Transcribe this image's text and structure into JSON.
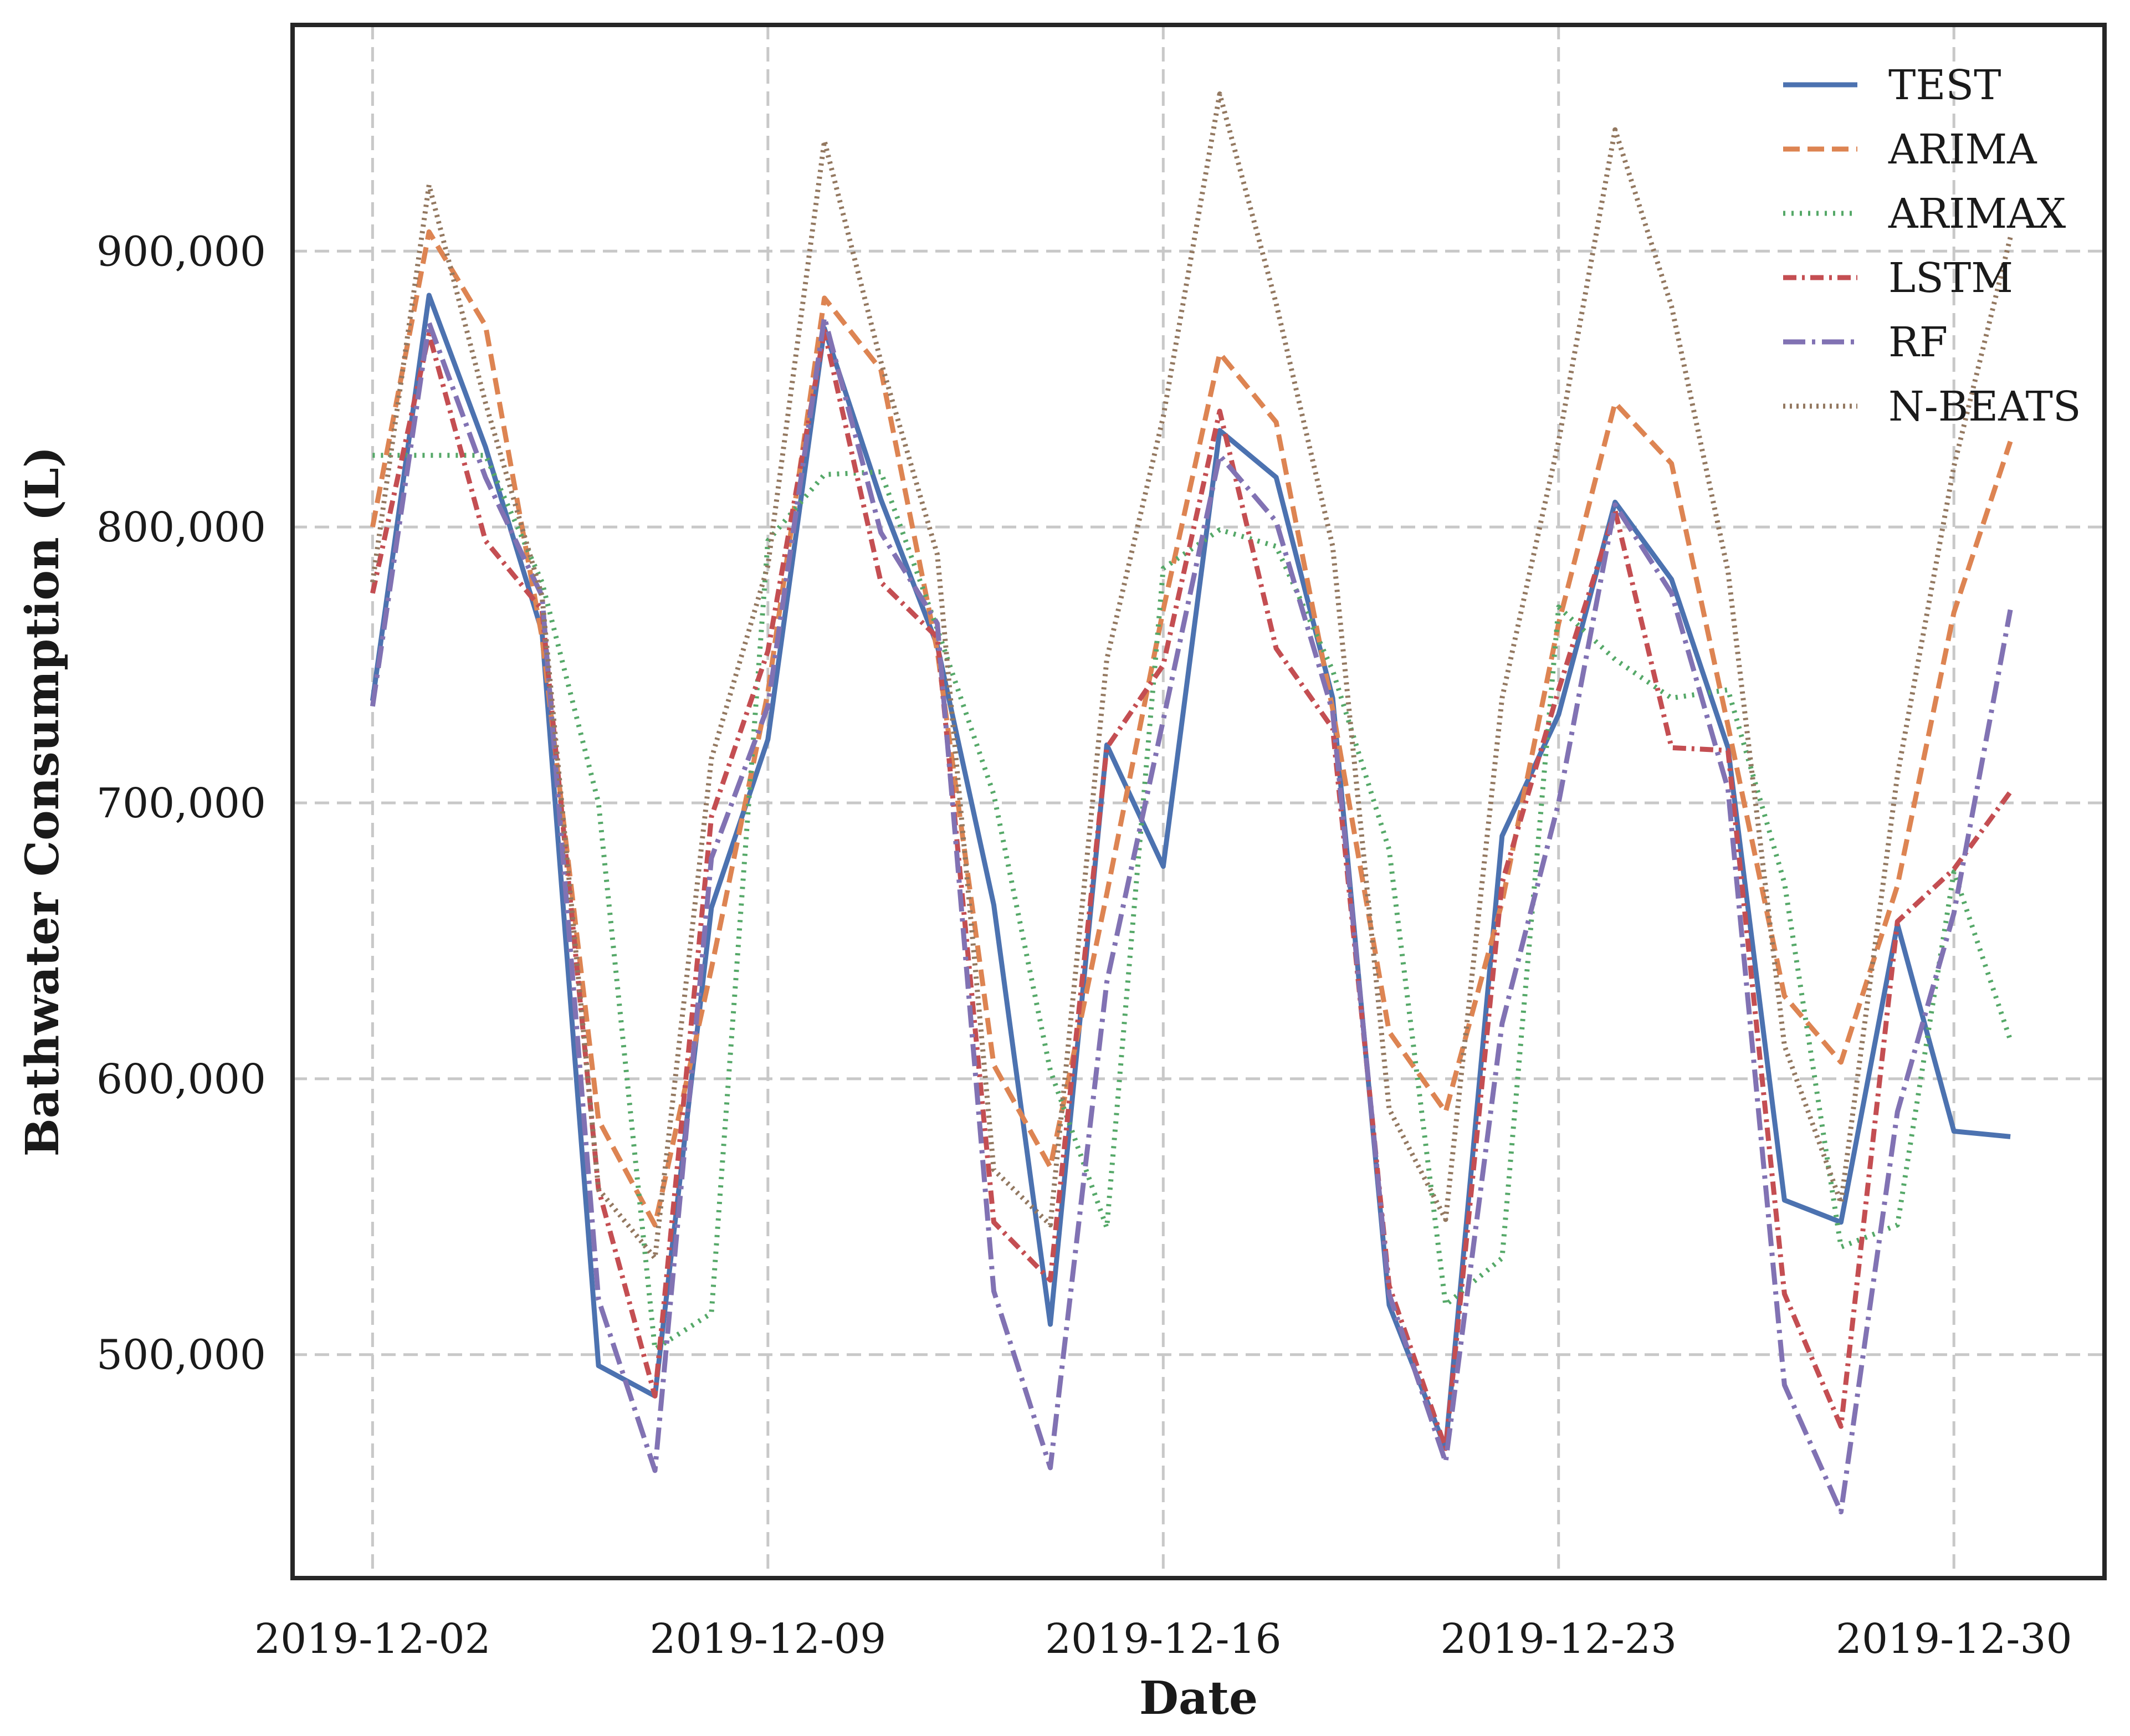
{
  "chart_data": {
    "type": "line",
    "xlabel": "Date",
    "ylabel": "Bathwater Consumption (L)",
    "x_tick_labels": [
      "2019-12-02",
      "2019-12-09",
      "2019-12-16",
      "2019-12-23",
      "2019-12-30"
    ],
    "y_tick_labels": [
      "500,000",
      "600,000",
      "700,000",
      "800,000",
      "900,000"
    ],
    "y_ticks": [
      500000,
      600000,
      700000,
      800000,
      900000
    ],
    "xlim": [
      "2019-11-30 14:00",
      "2020-01-01 16:00"
    ],
    "ylim": [
      419000,
      982000
    ],
    "grid": true,
    "legend_position": "top-right",
    "x": [
      "2019-12-02",
      "2019-12-03",
      "2019-12-04",
      "2019-12-05",
      "2019-12-06",
      "2019-12-07",
      "2019-12-08",
      "2019-12-09",
      "2019-12-10",
      "2019-12-11",
      "2019-12-12",
      "2019-12-13",
      "2019-12-14",
      "2019-12-15",
      "2019-12-16",
      "2019-12-17",
      "2019-12-18",
      "2019-12-19",
      "2019-12-20",
      "2019-12-21",
      "2019-12-22",
      "2019-12-23",
      "2019-12-24",
      "2019-12-25",
      "2019-12-26",
      "2019-12-27",
      "2019-12-28",
      "2019-12-29",
      "2019-12-30",
      "2019-12-31"
    ],
    "series": [
      {
        "name": "TEST",
        "color": "#4c72b0",
        "dash": "solid",
        "values": [
          737000,
          884000,
          829000,
          762000,
          496000,
          485000,
          662000,
          723000,
          872000,
          810000,
          757000,
          663000,
          511000,
          721000,
          677000,
          835000,
          818000,
          738000,
          518000,
          466000,
          688000,
          732000,
          809000,
          781000,
          720000,
          556000,
          548000,
          656000,
          581000,
          579000
        ]
      },
      {
        "name": "ARIMA",
        "color": "#dd8452",
        "dash": "dashed",
        "values": [
          800000,
          907000,
          873000,
          760000,
          585000,
          547000,
          640000,
          740000,
          883000,
          857000,
          755000,
          605000,
          568000,
          667000,
          770000,
          863000,
          838000,
          734000,
          617000,
          588000,
          664000,
          765000,
          845000,
          823000,
          728000,
          630000,
          606000,
          670000,
          769000,
          831000
        ]
      },
      {
        "name": "ARIMAX",
        "color": "#55a868",
        "dash": "dotted",
        "values": [
          826000,
          826000,
          826000,
          780000,
          700000,
          502000,
          515000,
          795000,
          819000,
          820000,
          763000,
          703000,
          603000,
          546000,
          785000,
          799000,
          793000,
          748000,
          683000,
          518000,
          535000,
          771000,
          752000,
          738000,
          741000,
          671000,
          539000,
          547000,
          675000,
          614000
        ]
      },
      {
        "name": "LSTM",
        "color": "#c44e52",
        "dash": "dashdot",
        "values": [
          776000,
          870000,
          795000,
          770000,
          560000,
          485000,
          695000,
          755000,
          871000,
          780000,
          760000,
          548000,
          527000,
          720000,
          750000,
          842000,
          756000,
          727000,
          525000,
          466000,
          671000,
          741000,
          806000,
          720000,
          719000,
          522000,
          474000,
          657000,
          676000,
          704000
        ]
      },
      {
        "name": "RF",
        "color": "#8172b3",
        "dash": "dashdot2",
        "values": [
          735000,
          874000,
          818000,
          775000,
          520000,
          458000,
          680000,
          735000,
          876000,
          798000,
          765000,
          523000,
          459000,
          635000,
          730000,
          826000,
          802000,
          733000,
          522000,
          461000,
          620000,
          700000,
          808000,
          776000,
          705000,
          489000,
          443000,
          588000,
          660000,
          770000
        ]
      },
      {
        "name": "N-BEATS",
        "color": "#937860",
        "dash": "densedot",
        "values": [
          780000,
          924000,
          845000,
          775000,
          560000,
          535000,
          716000,
          786000,
          940000,
          860000,
          790000,
          567000,
          547000,
          752000,
          840000,
          957000,
          881000,
          793000,
          589000,
          549000,
          738000,
          831000,
          944000,
          880000,
          784000,
          612000,
          555000,
          710000,
          822000,
          905000
        ]
      }
    ]
  }
}
